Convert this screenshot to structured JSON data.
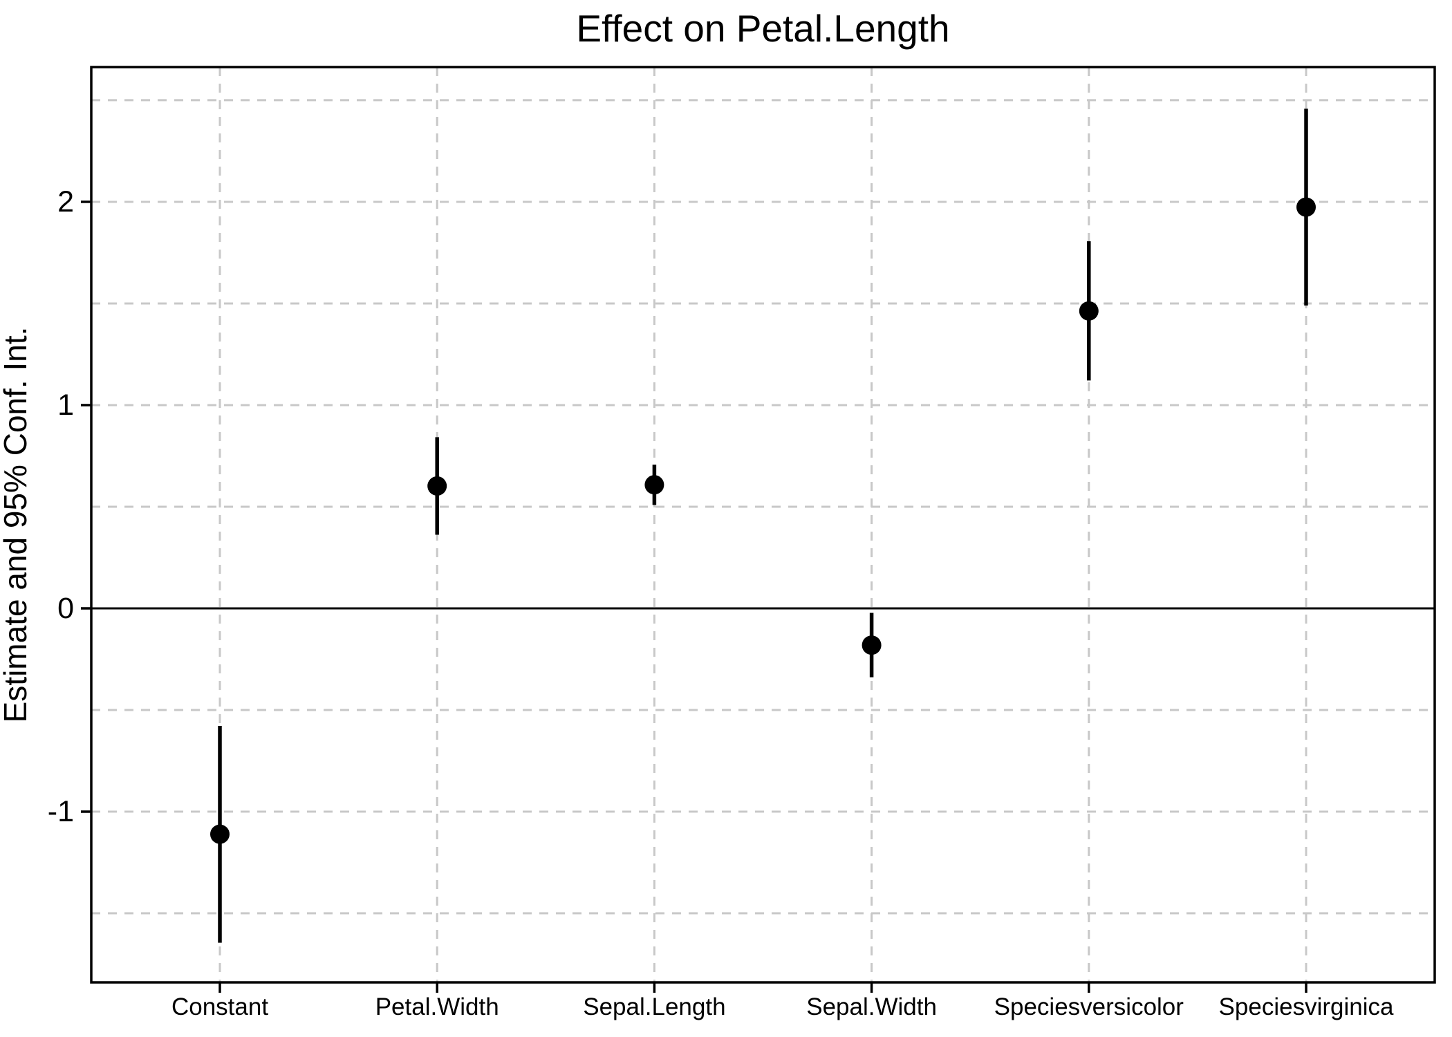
{
  "figure": {
    "title": "Effect on Petal.Length",
    "background": "#ffffff"
  },
  "chart_data": {
    "type": "scatter",
    "subtype": "coefficient-plot-pointrange",
    "title": "Effect on Petal.Length",
    "xlabel": "",
    "ylabel": "Estimate and 95% Conf. Int.",
    "categories": [
      "Constant",
      "Petal.Width",
      "Sepal.Length",
      "Sepal.Width",
      "Speciesversicolor",
      "Speciesvirginica"
    ],
    "series": [
      {
        "name": "Estimate",
        "values": [
          -1.111,
          0.602,
          0.608,
          -0.181,
          1.463,
          1.974
        ]
      }
    ],
    "ci_lower": [
      -1.645,
      0.362,
      0.509,
      -0.339,
      1.121,
      1.49
    ],
    "ci_upper": [
      -0.578,
      0.842,
      0.707,
      -0.022,
      1.806,
      2.458
    ],
    "confidence_level": "95%",
    "y_ticks": [
      2,
      1,
      0,
      -1
    ],
    "y_tick_labels": [
      "2",
      "1",
      "0",
      "-1"
    ],
    "y_gridlines": [
      2.5,
      2,
      1.5,
      1,
      0.5,
      -0.5,
      -1,
      -1.5
    ],
    "ylim": [
      -1.84,
      2.663
    ],
    "zero_line": 0,
    "grid": "dashed-both-axes",
    "legend": "none",
    "marker": "filled-circle",
    "colors": {
      "point": "#000000",
      "interval": "#000000",
      "zero_line": "#000000",
      "axis": "#000000",
      "gridline": "#c8c8c8",
      "text": "#000000",
      "background": "#ffffff"
    }
  }
}
